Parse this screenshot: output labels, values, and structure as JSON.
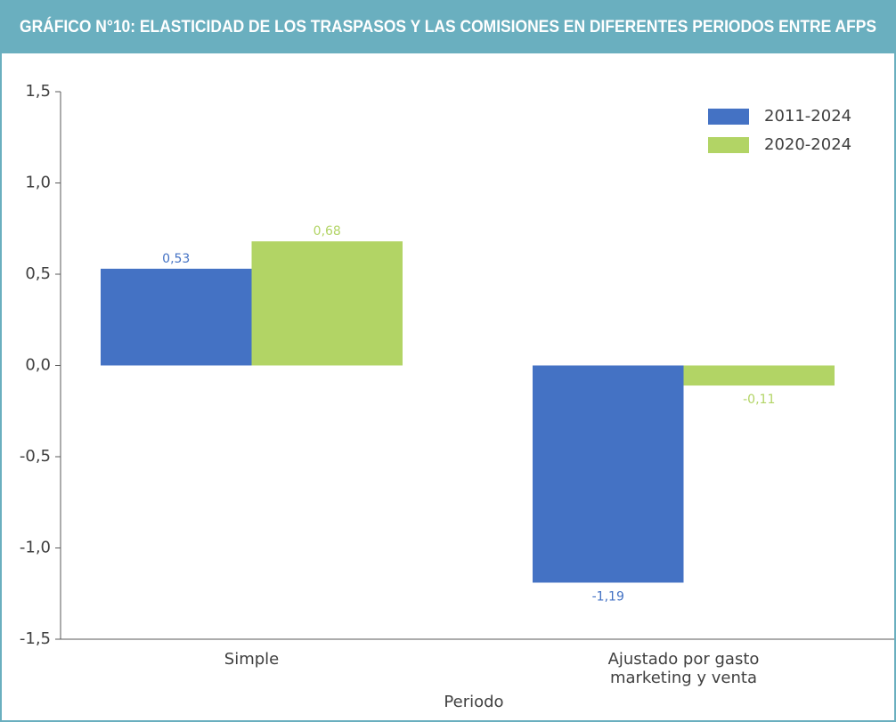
{
  "chart_data": {
    "type": "bar",
    "title": "GRÁFICO N°10: ELASTICIDAD DE LOS TRASPASOS Y LAS COMISIONES EN DIFERENTES PERIODOS ENTRE AFPS",
    "x_label": "Periodo",
    "categories": [
      "Simple",
      "Ajustado por gasto marketing y venta"
    ],
    "series": [
      {
        "name": "2011-2024",
        "color": "#4472c4",
        "values": [
          0.53,
          -1.19
        ],
        "value_labels": [
          "0,53",
          "-1,19"
        ]
      },
      {
        "name": "2020-2024",
        "color": "#b2d465",
        "values": [
          0.68,
          -0.11
        ],
        "value_labels": [
          "0,68",
          "-0,11"
        ]
      }
    ],
    "ylim": [
      -1.5,
      1.5
    ],
    "yticks": [
      {
        "value": -1.5,
        "label": "-1,5"
      },
      {
        "value": -1.0,
        "label": "-1,0"
      },
      {
        "value": -0.5,
        "label": "-0,5"
      },
      {
        "value": 0.0,
        "label": "0,0"
      },
      {
        "value": 0.5,
        "label": "0,5"
      },
      {
        "value": 1.0,
        "label": "1,0"
      },
      {
        "value": 1.5,
        "label": "1,5"
      }
    ],
    "legend": "upper right",
    "grid": false
  }
}
